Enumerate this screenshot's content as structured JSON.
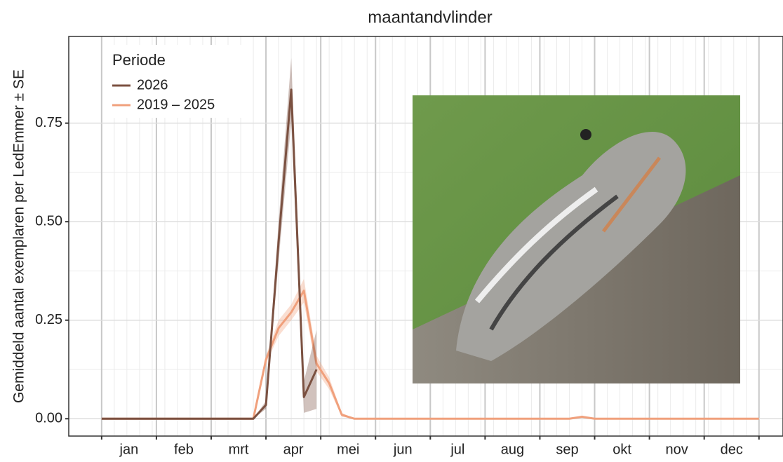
{
  "chart_data": {
    "type": "line",
    "title": "maantandvlinder",
    "y_label": "Gemiddeld aantal exemplaren per LedEmmer ± SE",
    "legend_title": "Periode",
    "categories": [
      "jan",
      "feb",
      "mrt",
      "apr",
      "mei",
      "jun",
      "jul",
      "aug",
      "sep",
      "okt",
      "nov",
      "dec"
    ],
    "x": [
      0,
      1,
      2,
      3,
      4,
      5,
      6,
      7,
      8,
      9,
      10,
      11,
      12,
      13,
      14,
      15,
      16,
      17,
      18,
      19,
      20,
      21,
      22,
      23,
      24,
      25,
      26,
      27,
      28,
      29,
      30,
      31,
      32,
      33,
      34,
      35,
      36,
      37,
      38,
      39,
      40,
      41,
      42,
      43,
      44,
      45,
      46,
      47,
      48,
      49,
      50,
      51,
      52
    ],
    "series": [
      {
        "name": "2026",
        "color": "#7b5141",
        "values": [
          0,
          0,
          0,
          0,
          0,
          0,
          0,
          0,
          0,
          0,
          0,
          0,
          0,
          0.035,
          0.45,
          0.835,
          0.055,
          0.125,
          null,
          null,
          null,
          null,
          null,
          null,
          null,
          null,
          null,
          null,
          null,
          null,
          null,
          null,
          null,
          null,
          null,
          null,
          null,
          null,
          null,
          null,
          null,
          null,
          null,
          null,
          null,
          null,
          null,
          null,
          null,
          null,
          null,
          null,
          null
        ],
        "se": [
          0,
          0,
          0,
          0,
          0,
          0,
          0,
          0,
          0,
          0,
          0,
          0,
          0,
          0.01,
          0.05,
          0.08,
          0.04,
          0.1,
          null,
          null,
          null,
          null,
          null,
          null,
          null,
          null,
          null,
          null,
          null,
          null,
          null,
          null,
          null,
          null,
          null,
          null,
          null,
          null,
          null,
          null,
          null,
          null,
          null,
          null,
          null,
          null,
          null,
          null,
          null,
          null,
          null,
          null,
          null
        ]
      },
      {
        "name": "2019 – 2025",
        "color": "#f0a07c",
        "values": [
          0,
          0,
          0,
          0,
          0,
          0,
          0,
          0,
          0,
          0,
          0,
          0,
          0,
          0.15,
          0.23,
          0.27,
          0.325,
          0.14,
          0.09,
          0.01,
          0,
          0,
          0,
          0,
          0,
          0,
          0,
          0,
          0,
          0,
          0,
          0,
          0,
          0,
          0,
          0,
          0,
          0,
          0.005,
          0,
          0,
          0,
          0,
          0,
          0,
          0,
          0,
          0,
          0,
          0,
          0,
          0,
          0
        ],
        "se": [
          0,
          0,
          0,
          0,
          0,
          0,
          0,
          0,
          0,
          0,
          0,
          0,
          0,
          0.01,
          0.02,
          0.02,
          0.03,
          0.02,
          0.015,
          0.005,
          0,
          0,
          0,
          0,
          0,
          0,
          0,
          0,
          0,
          0,
          0,
          0,
          0,
          0,
          0,
          0,
          0,
          0,
          0.003,
          0,
          0,
          0,
          0,
          0,
          0,
          0,
          0,
          0,
          0,
          0,
          0,
          0,
          0
        ]
      }
    ],
    "xlim": [
      -2.6,
      53.9
    ],
    "ylim": [
      -0.044,
      0.97
    ],
    "yticks": [
      {
        "value": 0,
        "label": "0.00"
      },
      {
        "value": 0.25,
        "label": "0.25"
      },
      {
        "value": 0.5,
        "label": "0.50"
      },
      {
        "value": 0.75,
        "label": "0.75"
      }
    ],
    "grid": true
  }
}
